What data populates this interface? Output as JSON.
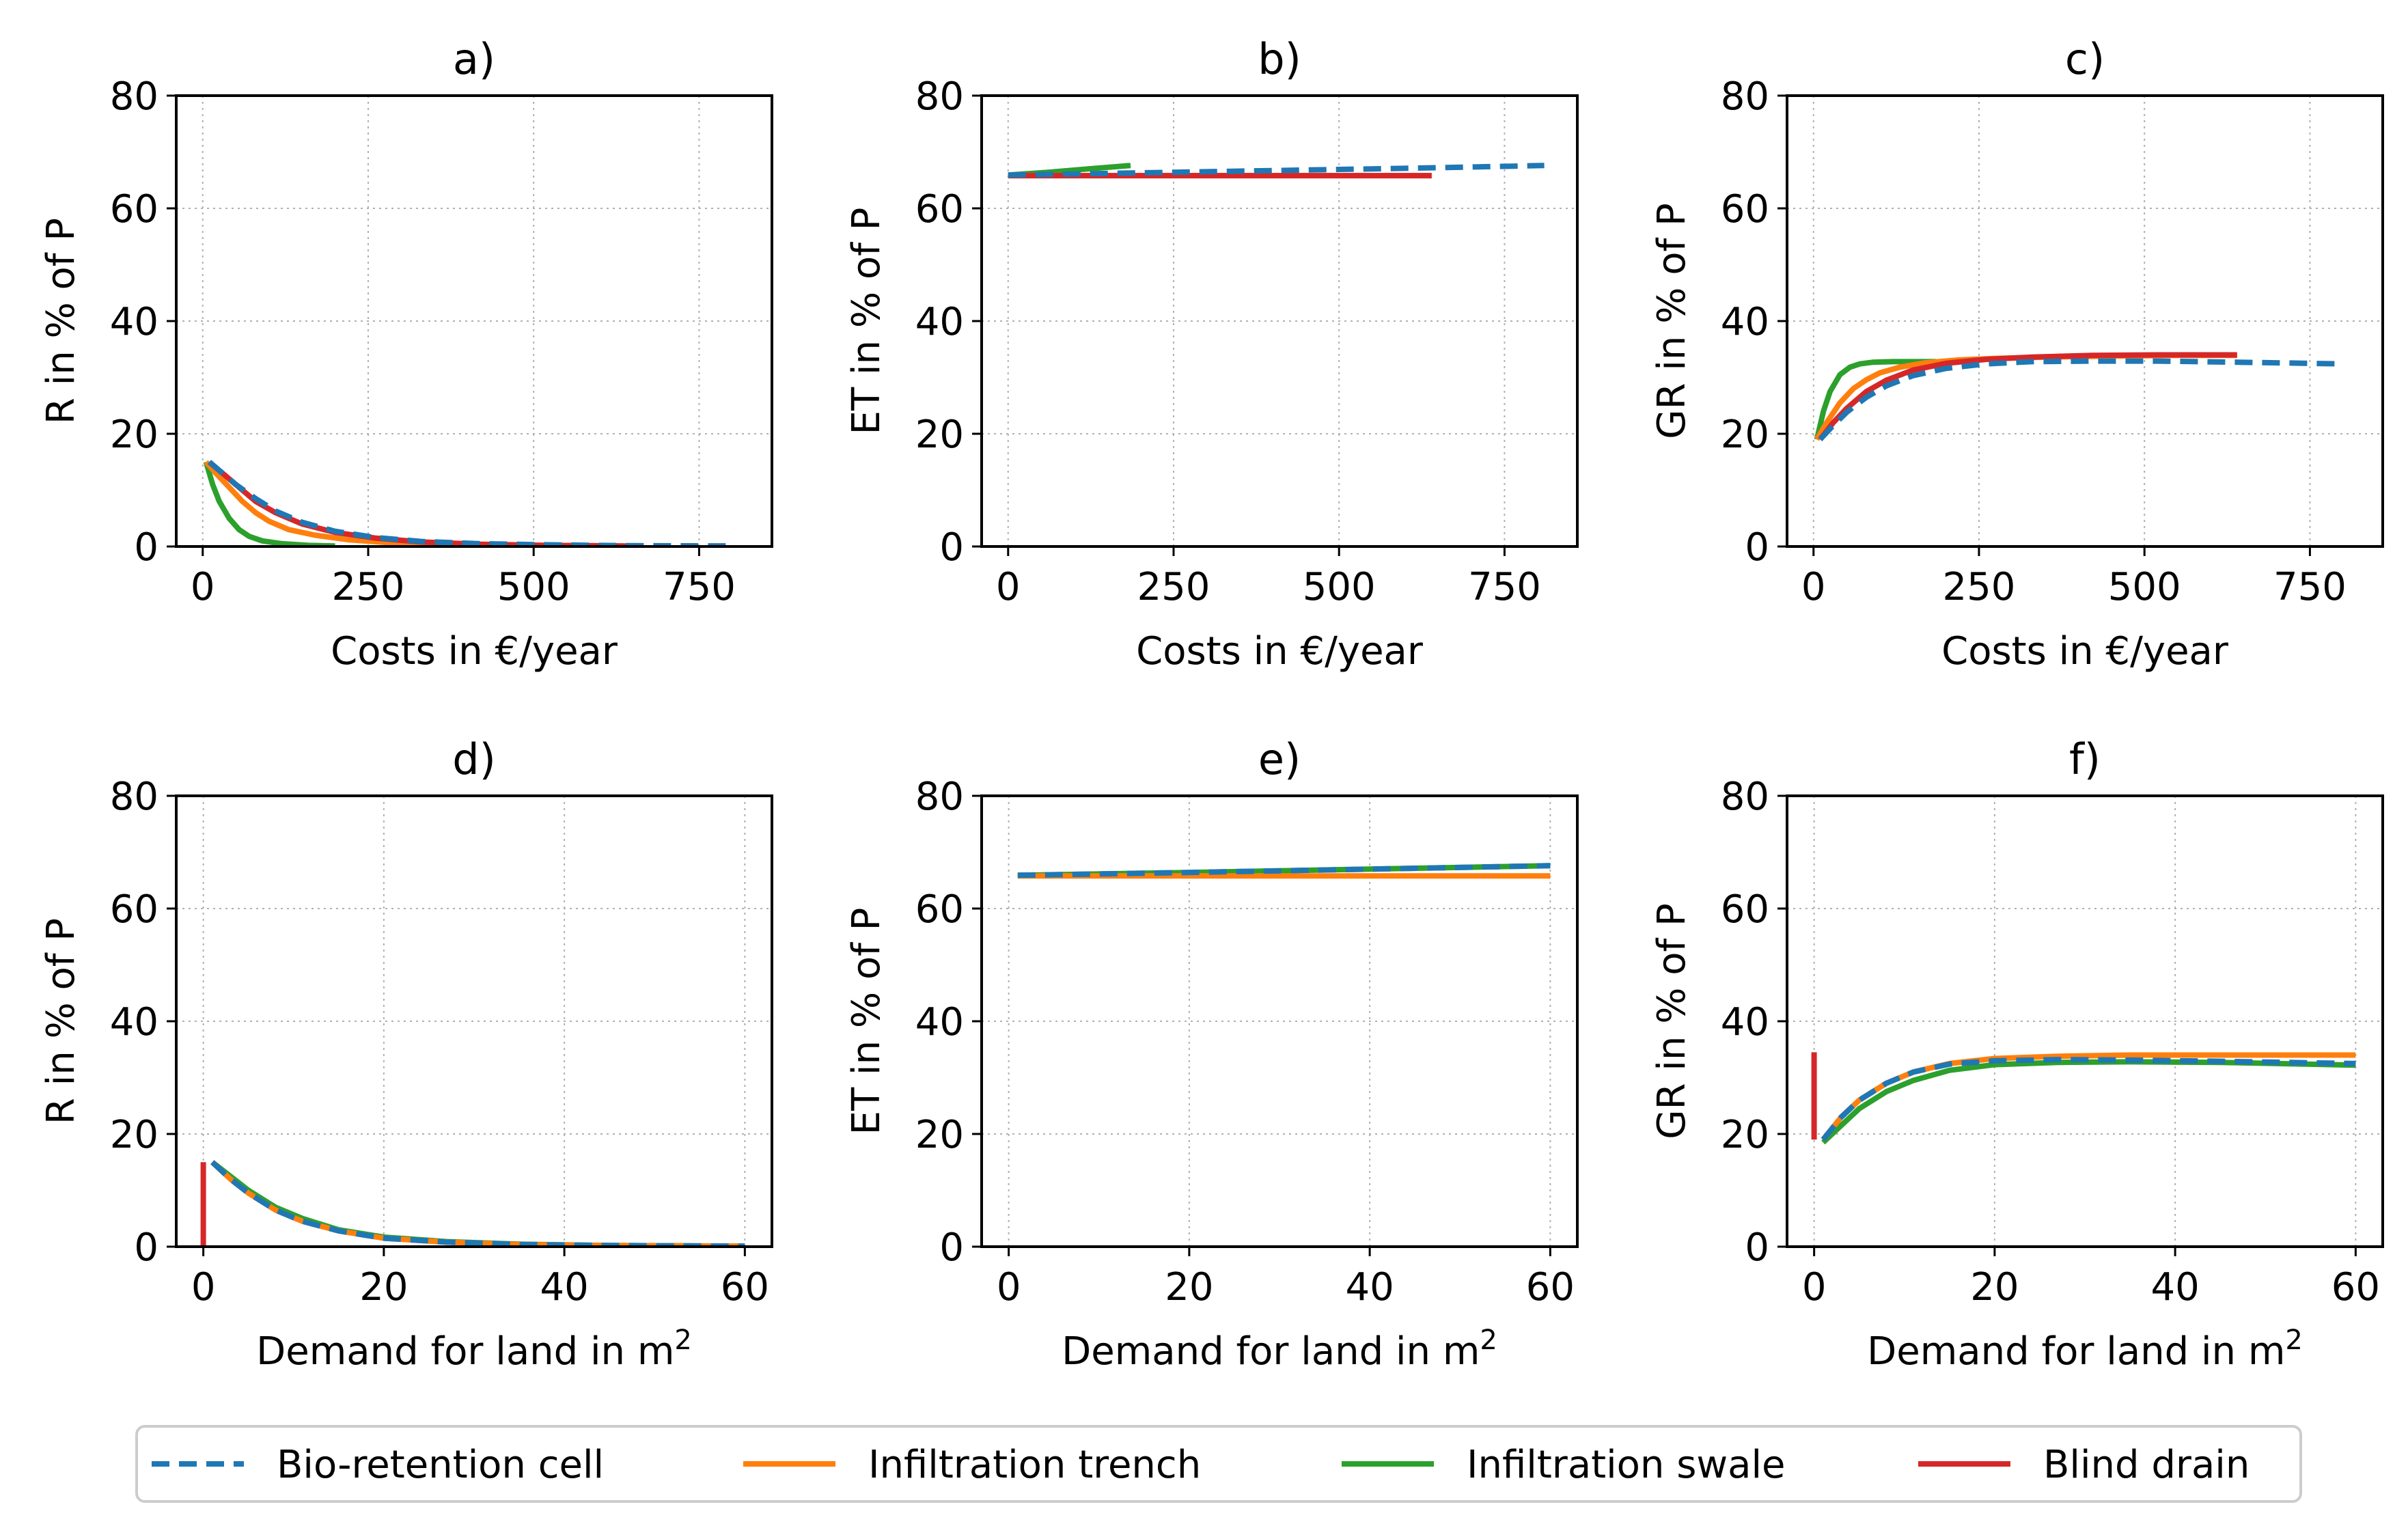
{
  "colors": {
    "bio": "#1f77b4",
    "trench": "#ff7f0e",
    "swale": "#2ca02c",
    "blind": "#d62728",
    "grid": "#b0b0b0",
    "axis": "#000000"
  },
  "legend": {
    "entries": [
      {
        "name": "Bio-retention cell",
        "color": "#1f77b4",
        "style": "dashed"
      },
      {
        "name": "Infiltration trench",
        "color": "#ff7f0e",
        "style": "solid"
      },
      {
        "name": "Infiltration swale",
        "color": "#2ca02c",
        "style": "solid"
      },
      {
        "name": "Blind drain",
        "color": "#d62728",
        "style": "solid"
      }
    ]
  },
  "chart_data": [
    {
      "id": "a",
      "type": "line",
      "title": "a)",
      "xlabel": "Costs in €/year",
      "ylabel": "R in % of P",
      "xlim": [
        -40,
        860
      ],
      "ylim": [
        0,
        80
      ],
      "xticks": [
        0,
        250,
        500,
        750
      ],
      "xtick_labels": [
        "0",
        "250",
        "500",
        "750"
      ],
      "yticks": [
        0,
        20,
        40,
        60,
        80
      ],
      "ytick_labels": [
        "0",
        "20",
        "40",
        "60",
        "80"
      ],
      "grid": true,
      "series": [
        {
          "name": "Infiltration swale",
          "key": "swale",
          "x": [
            5,
            15,
            25,
            40,
            55,
            70,
            90,
            120,
            160,
            200
          ],
          "y": [
            15,
            11,
            8,
            5,
            3,
            1.8,
            1,
            0.5,
            0.2,
            0.1
          ]
        },
        {
          "name": "Infiltration trench",
          "key": "trench",
          "x": [
            5,
            20,
            40,
            60,
            80,
            100,
            130,
            170,
            220,
            280,
            350,
            450,
            550,
            640
          ],
          "y": [
            15,
            13,
            10.5,
            8,
            6,
            4.5,
            3,
            2,
            1.2,
            0.7,
            0.4,
            0.2,
            0.1,
            0.05
          ]
        },
        {
          "name": "Blind drain",
          "key": "blind",
          "x": [
            10,
            30,
            50,
            80,
            110,
            150,
            200,
            260,
            330,
            420,
            520,
            640
          ],
          "y": [
            15,
            13,
            11,
            8,
            6,
            4,
            2.5,
            1.5,
            0.8,
            0.4,
            0.2,
            0.1
          ]
        },
        {
          "name": "Bio-retention cell",
          "key": "bio",
          "x": [
            10,
            30,
            50,
            80,
            110,
            150,
            200,
            260,
            330,
            420,
            520,
            640,
            800
          ],
          "y": [
            15,
            13,
            11,
            8.5,
            6.3,
            4.3,
            2.7,
            1.6,
            0.9,
            0.5,
            0.3,
            0.15,
            0.1
          ]
        }
      ]
    },
    {
      "id": "b",
      "type": "line",
      "title": "b)",
      "xlabel": "Costs in €/year",
      "ylabel": "ET in % of P",
      "xlim": [
        -40,
        860
      ],
      "ylim": [
        0,
        80
      ],
      "xticks": [
        0,
        250,
        500,
        750
      ],
      "xtick_labels": [
        "0",
        "250",
        "500",
        "750"
      ],
      "yticks": [
        0,
        20,
        40,
        60,
        80
      ],
      "ytick_labels": [
        "0",
        "20",
        "40",
        "60",
        "80"
      ],
      "grid": true,
      "series": [
        {
          "name": "Infiltration trench",
          "key": "trench",
          "x": [
            0,
            640
          ],
          "y": [
            65.8,
            65.8
          ]
        },
        {
          "name": "Blind drain",
          "key": "blind",
          "x": [
            0,
            640
          ],
          "y": [
            65.8,
            65.8
          ]
        },
        {
          "name": "Infiltration swale",
          "key": "swale",
          "x": [
            0,
            60,
            120,
            185
          ],
          "y": [
            65.9,
            66.4,
            67,
            67.6
          ]
        },
        {
          "name": "Bio-retention cell",
          "key": "bio",
          "x": [
            0,
            200,
            400,
            600,
            810
          ],
          "y": [
            65.9,
            66.3,
            66.7,
            67.1,
            67.6
          ]
        }
      ]
    },
    {
      "id": "c",
      "type": "line",
      "title": "c)",
      "xlabel": "Costs in €/year",
      "ylabel": "GR in % of P",
      "xlim": [
        -40,
        860
      ],
      "ylim": [
        0,
        80
      ],
      "xticks": [
        0,
        250,
        500,
        750
      ],
      "xtick_labels": [
        "0",
        "250",
        "500",
        "750"
      ],
      "yticks": [
        0,
        20,
        40,
        60,
        80
      ],
      "ytick_labels": [
        "0",
        "20",
        "40",
        "60",
        "80"
      ],
      "grid": true,
      "series": [
        {
          "name": "Infiltration swale",
          "key": "swale",
          "x": [
            5,
            15,
            25,
            40,
            55,
            70,
            90,
            120,
            150,
            185
          ],
          "y": [
            19,
            24,
            27.5,
            30.5,
            31.8,
            32.4,
            32.7,
            32.8,
            32.8,
            32.8
          ]
        },
        {
          "name": "Infiltration trench",
          "key": "trench",
          "x": [
            5,
            20,
            40,
            60,
            80,
            100,
            130,
            170,
            220,
            280,
            350,
            450,
            550,
            640
          ],
          "y": [
            19,
            22,
            25.5,
            28,
            29.6,
            30.8,
            31.8,
            32.6,
            33.1,
            33.4,
            33.6,
            33.8,
            33.9,
            33.9
          ]
        },
        {
          "name": "Blind drain",
          "key": "blind",
          "x": [
            10,
            30,
            50,
            80,
            110,
            150,
            200,
            260,
            330,
            420,
            520,
            640
          ],
          "y": [
            19,
            22,
            24.5,
            27.5,
            29.5,
            31.3,
            32.5,
            33.2,
            33.6,
            33.9,
            34.0,
            34.0
          ]
        },
        {
          "name": "Bio-retention cell",
          "key": "bio",
          "x": [
            10,
            30,
            50,
            80,
            110,
            150,
            200,
            260,
            330,
            420,
            520,
            640,
            800
          ],
          "y": [
            19,
            21.5,
            23.8,
            26.5,
            28.5,
            30.3,
            31.6,
            32.4,
            32.8,
            32.9,
            32.9,
            32.7,
            32.4
          ]
        }
      ]
    },
    {
      "id": "d",
      "type": "line",
      "title": "d)",
      "xlabel": "Demand for land in m",
      "xlabel_sup": "2",
      "ylabel": "R in % of P",
      "xlim": [
        -3,
        63
      ],
      "ylim": [
        0,
        80
      ],
      "xticks": [
        0,
        20,
        40,
        60
      ],
      "xtick_labels": [
        "0",
        "20",
        "40",
        "60"
      ],
      "yticks": [
        0,
        20,
        40,
        60,
        80
      ],
      "ytick_labels": [
        "0",
        "20",
        "40",
        "60",
        "80"
      ],
      "grid": true,
      "series": [
        {
          "name": "Blind drain",
          "key": "blind",
          "x": [
            0,
            0
          ],
          "y": [
            0,
            15
          ]
        },
        {
          "name": "Infiltration swale",
          "key": "swale",
          "x": [
            1,
            3,
            5,
            8,
            11,
            15,
            20,
            27,
            35,
            45,
            60
          ],
          "y": [
            15,
            12.5,
            10,
            7,
            5,
            3,
            1.7,
            0.9,
            0.45,
            0.2,
            0.1
          ]
        },
        {
          "name": "Infiltration trench",
          "key": "trench",
          "x": [
            1,
            3,
            5,
            8,
            11,
            15,
            20,
            27,
            35,
            45,
            60
          ],
          "y": [
            15,
            12,
            9.5,
            6.5,
            4.5,
            2.8,
            1.5,
            0.8,
            0.4,
            0.2,
            0.1
          ]
        },
        {
          "name": "Bio-retention cell",
          "key": "bio",
          "x": [
            1,
            3,
            5,
            8,
            11,
            15,
            20,
            27,
            35,
            45,
            60
          ],
          "y": [
            15,
            12,
            9.5,
            6.5,
            4.5,
            2.8,
            1.5,
            0.8,
            0.4,
            0.2,
            0.1
          ]
        }
      ]
    },
    {
      "id": "e",
      "type": "line",
      "title": "e)",
      "xlabel": "Demand for land in m",
      "xlabel_sup": "2",
      "ylabel": "ET in % of P",
      "xlim": [
        -3,
        63
      ],
      "ylim": [
        0,
        80
      ],
      "xticks": [
        0,
        20,
        40,
        60
      ],
      "xtick_labels": [
        "0",
        "20",
        "40",
        "60"
      ],
      "yticks": [
        0,
        20,
        40,
        60,
        80
      ],
      "ytick_labels": [
        "0",
        "20",
        "40",
        "60",
        "80"
      ],
      "grid": true,
      "series": [
        {
          "name": "Infiltration trench",
          "key": "trench",
          "x": [
            1,
            60
          ],
          "y": [
            65.8,
            65.8
          ]
        },
        {
          "name": "Infiltration swale",
          "key": "swale",
          "x": [
            1,
            20,
            40,
            60
          ],
          "y": [
            65.9,
            66.4,
            67,
            67.6
          ]
        },
        {
          "name": "Bio-retention cell",
          "key": "bio",
          "x": [
            1,
            20,
            40,
            60
          ],
          "y": [
            65.9,
            66.4,
            67,
            67.6
          ]
        }
      ]
    },
    {
      "id": "f",
      "type": "line",
      "title": "f)",
      "xlabel": "Demand for land in m",
      "xlabel_sup": "2",
      "ylabel": "GR in % of P",
      "xlim": [
        -3,
        63
      ],
      "ylim": [
        0,
        80
      ],
      "xticks": [
        0,
        20,
        40,
        60
      ],
      "xtick_labels": [
        "0",
        "20",
        "40",
        "60"
      ],
      "yticks": [
        0,
        20,
        40,
        60,
        80
      ],
      "ytick_labels": [
        "0",
        "20",
        "40",
        "60",
        "80"
      ],
      "grid": true,
      "series": [
        {
          "name": "Blind drain",
          "key": "blind",
          "x": [
            0,
            0
          ],
          "y": [
            19,
            34.5
          ]
        },
        {
          "name": "Infiltration trench",
          "key": "trench",
          "x": [
            1,
            3,
            5,
            8,
            11,
            15,
            20,
            27,
            35,
            45,
            60
          ],
          "y": [
            19,
            23,
            26,
            29,
            31,
            32.5,
            33.4,
            33.8,
            34,
            34,
            34
          ]
        },
        {
          "name": "Infiltration swale",
          "key": "swale",
          "x": [
            1,
            3,
            5,
            8,
            11,
            15,
            20,
            27,
            35,
            45,
            60
          ],
          "y": [
            18.5,
            21.5,
            24.5,
            27.5,
            29.5,
            31.3,
            32.3,
            32.7,
            32.8,
            32.7,
            32.2
          ]
        },
        {
          "name": "Bio-retention cell",
          "key": "bio",
          "x": [
            1,
            3,
            5,
            8,
            11,
            15,
            20,
            27,
            35,
            45,
            60
          ],
          "y": [
            19,
            23,
            26,
            29,
            31,
            32.4,
            33,
            33.2,
            33.1,
            32.9,
            32.5
          ]
        }
      ]
    }
  ]
}
